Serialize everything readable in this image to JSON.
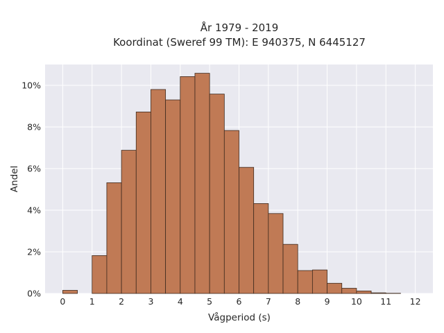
{
  "chart_data": {
    "type": "bar",
    "title_lines": [
      "År 1979 - 2019",
      "Koordinat (Sweref 99 TM): E 940375, N 6445127"
    ],
    "xlabel": "Vågperiod (s)",
    "ylabel": "Andel",
    "xlim": [
      -0.6,
      12.6
    ],
    "ylim": [
      0,
      0.11
    ],
    "x_ticks": [
      0,
      1,
      2,
      3,
      4,
      5,
      6,
      7,
      8,
      9,
      10,
      11,
      12
    ],
    "y_ticks": [
      {
        "value": 0,
        "label": "0%"
      },
      {
        "value": 0.02,
        "label": "2%"
      },
      {
        "value": 0.04,
        "label": "4%"
      },
      {
        "value": 0.06,
        "label": "6%"
      },
      {
        "value": 0.08,
        "label": "8%"
      },
      {
        "value": 0.1,
        "label": "10%"
      }
    ],
    "bin_width": 0.5,
    "bins": [
      {
        "start": 0.0,
        "value": 0.0015
      },
      {
        "start": 0.5,
        "value": 0.0
      },
      {
        "start": 1.0,
        "value": 0.0182
      },
      {
        "start": 1.5,
        "value": 0.0532
      },
      {
        "start": 2.0,
        "value": 0.0688
      },
      {
        "start": 2.5,
        "value": 0.0872
      },
      {
        "start": 3.0,
        "value": 0.098
      },
      {
        "start": 3.5,
        "value": 0.093
      },
      {
        "start": 4.0,
        "value": 0.1042
      },
      {
        "start": 4.5,
        "value": 0.1058
      },
      {
        "start": 5.0,
        "value": 0.0958
      },
      {
        "start": 5.5,
        "value": 0.0783
      },
      {
        "start": 6.0,
        "value": 0.0606
      },
      {
        "start": 6.5,
        "value": 0.0432
      },
      {
        "start": 7.0,
        "value": 0.0384
      },
      {
        "start": 7.5,
        "value": 0.0236
      },
      {
        "start": 8.0,
        "value": 0.011
      },
      {
        "start": 8.5,
        "value": 0.0113
      },
      {
        "start": 9.0,
        "value": 0.0049
      },
      {
        "start": 9.5,
        "value": 0.0025
      },
      {
        "start": 10.0,
        "value": 0.0012
      },
      {
        "start": 10.5,
        "value": 0.0003
      },
      {
        "start": 11.0,
        "value": 0.0001
      }
    ],
    "grid": true,
    "colors": {
      "bar_fill": "#c07a55",
      "bar_edge": "#3e2a1e",
      "plot_background": "#e9e9f0",
      "grid": "#ffffff"
    }
  }
}
